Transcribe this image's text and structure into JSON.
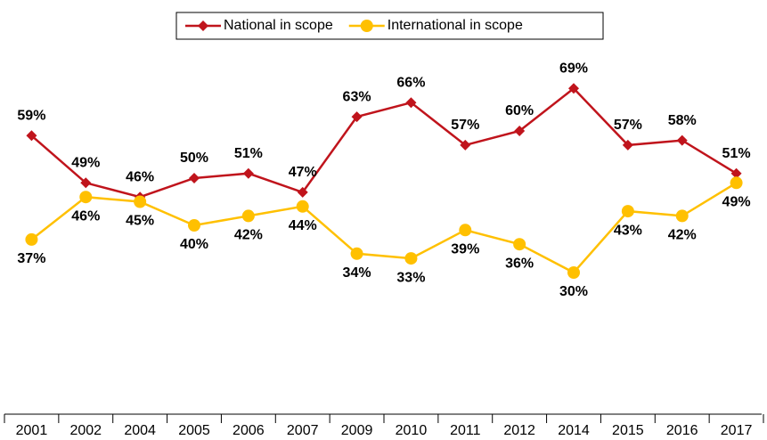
{
  "chart_data": {
    "type": "line",
    "categories": [
      "2001",
      "2002",
      "2004",
      "2005",
      "2006",
      "2007",
      "2009",
      "2010",
      "2011",
      "2012",
      "2014",
      "2015",
      "2016",
      "2017"
    ],
    "series": [
      {
        "name": "National in scope",
        "color": "#c0141c",
        "marker": "diamond",
        "values": [
          59,
          49,
          46,
          50,
          51,
          47,
          63,
          66,
          57,
          60,
          69,
          57,
          58,
          51
        ],
        "value_labels": [
          "59%",
          "49%",
          "46%",
          "50%",
          "51%",
          "47%",
          "63%",
          "66%",
          "57%",
          "60%",
          "69%",
          "57%",
          "58%",
          "51%"
        ]
      },
      {
        "name": "International in scope",
        "color": "#ffc000",
        "marker": "circle",
        "values": [
          37,
          46,
          45,
          40,
          42,
          44,
          34,
          33,
          39,
          36,
          30,
          43,
          42,
          49
        ],
        "value_labels": [
          "37%",
          "46%",
          "45%",
          "40%",
          "42%",
          "44%",
          "34%",
          "33%",
          "39%",
          "36%",
          "30%",
          "43%",
          "42%",
          "49%"
        ]
      }
    ],
    "ylim": [
      0,
      80
    ],
    "legend": "top"
  }
}
